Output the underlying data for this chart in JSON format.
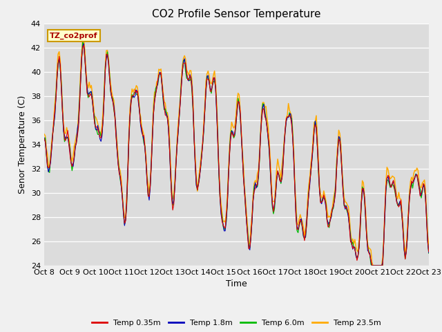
{
  "title": "CO2 Profile Sensor Temperature",
  "ylabel": "Senor Temperature (C)",
  "xlabel": "Time",
  "ylim": [
    24,
    44
  ],
  "annotation": "TZ_co2prof",
  "colors": {
    "Temp 0.35m": "#dd0000",
    "Temp 1.8m": "#0000bb",
    "Temp 6.0m": "#00bb00",
    "Temp 23.5m": "#ffaa00"
  },
  "legend_labels": [
    "Temp 0.35m",
    "Temp 1.8m",
    "Temp 6.0m",
    "Temp 23.5m"
  ],
  "xtick_labels": [
    "Oct 8",
    "Oct 9",
    "Oct 10",
    "Oct 11",
    "Oct 12",
    "Oct 13",
    "Oct 14",
    "Oct 15",
    "Oct 16",
    "Oct 17",
    "Oct 18",
    "Oct 19",
    "Oct 20",
    "Oct 21",
    "Oct 22",
    "Oct 23"
  ],
  "background_color": "#dcdcdc",
  "fig_color": "#f0f0f0",
  "title_fontsize": 11,
  "label_fontsize": 9,
  "tick_fontsize": 8
}
